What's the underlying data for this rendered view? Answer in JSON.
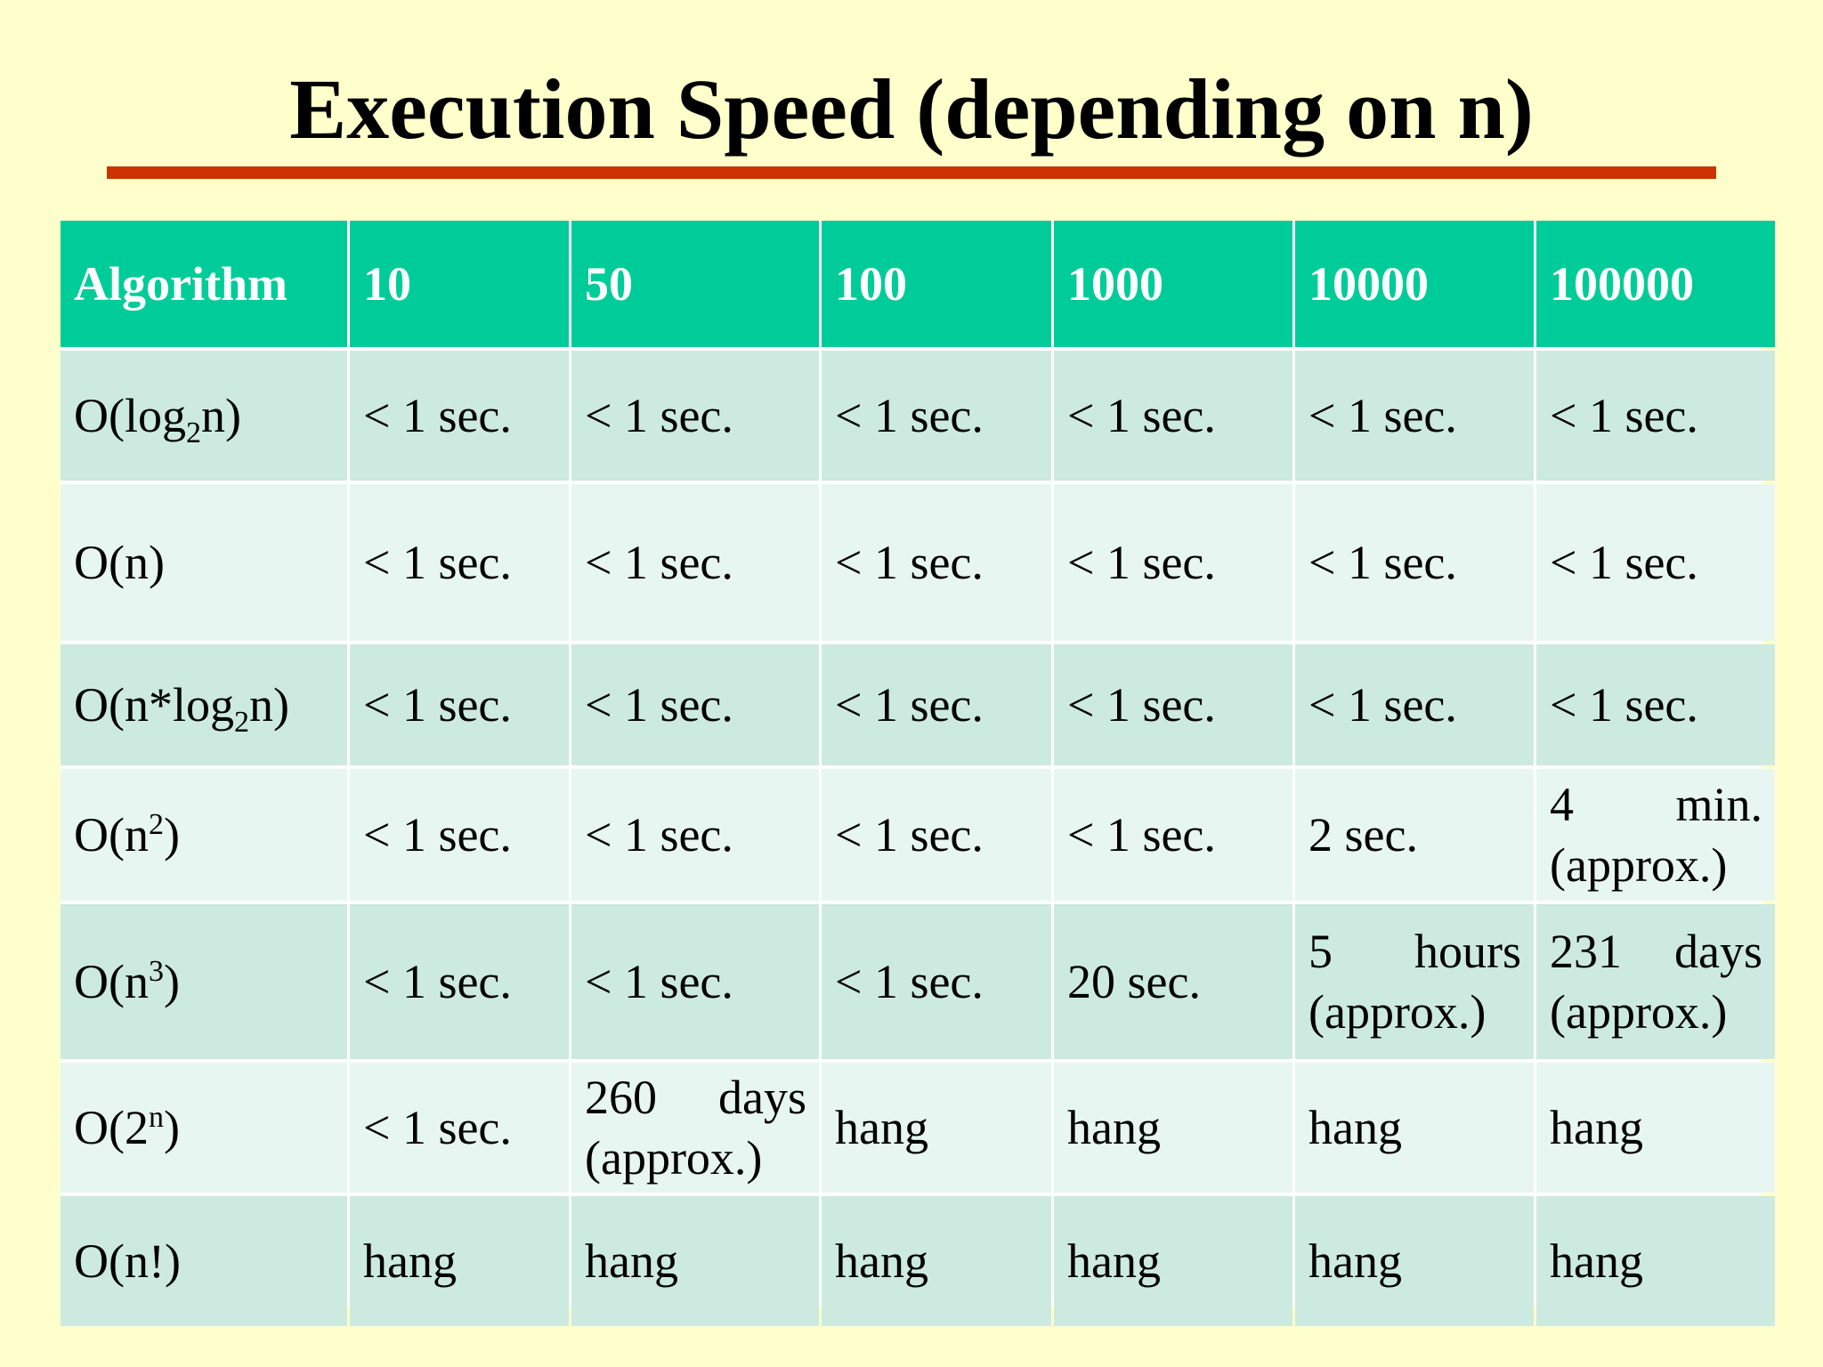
{
  "title": "Execution Speed (depending on n)",
  "colors": {
    "background": "#ffffcc",
    "title_rule": "#cc3300",
    "header": "#00cc99",
    "row_dark": "#cceae0",
    "row_light": "#e8f6f2"
  },
  "table": {
    "headers": [
      "Algorithm",
      "10",
      "50",
      "100",
      "1000",
      "10000",
      "100000"
    ],
    "rows": [
      {
        "algorithm": {
          "base": "O(log",
          "script": "2",
          "script_type": "sub",
          "tail": "n)"
        },
        "values": [
          "< 1 sec.",
          "< 1 sec.",
          "< 1 sec.",
          "< 1 sec.",
          "< 1 sec.",
          "< 1 sec."
        ]
      },
      {
        "algorithm": {
          "base": "O(n)",
          "script": "",
          "script_type": "",
          "tail": ""
        },
        "values": [
          "< 1 sec.",
          "< 1 sec.",
          "< 1 sec.",
          "< 1 sec.",
          "< 1 sec.",
          "< 1 sec."
        ]
      },
      {
        "algorithm": {
          "base": "O(n*log",
          "script": "2",
          "script_type": "sub",
          "tail": "n)"
        },
        "values": [
          "< 1 sec.",
          "< 1 sec.",
          "< 1 sec.",
          "< 1 sec.",
          "< 1 sec.",
          "< 1 sec."
        ]
      },
      {
        "algorithm": {
          "base": "O(n",
          "script": "2",
          "script_type": "sup",
          "tail": ")"
        },
        "values": [
          "< 1 sec.",
          "< 1 sec.",
          "< 1 sec.",
          "< 1 sec.",
          "2 sec.",
          "4 min. (approx.)"
        ]
      },
      {
        "algorithm": {
          "base": "O(n",
          "script": "3",
          "script_type": "sup",
          "tail": ")"
        },
        "values": [
          "< 1 sec.",
          "< 1 sec.",
          "< 1 sec.",
          "20 sec.",
          "5 hours (approx.)",
          "231 days (approx.)"
        ]
      },
      {
        "algorithm": {
          "base": "O(2",
          "script": "n",
          "script_type": "sup",
          "tail": ")"
        },
        "values": [
          "< 1 sec.",
          "260 days (approx.)",
          "hang",
          "hang",
          "hang",
          "hang"
        ]
      },
      {
        "algorithm": {
          "base": "O(n!)",
          "script": "",
          "script_type": "",
          "tail": ""
        },
        "values": [
          "hang",
          "hang",
          "hang",
          "hang",
          "hang",
          "hang"
        ]
      }
    ]
  }
}
